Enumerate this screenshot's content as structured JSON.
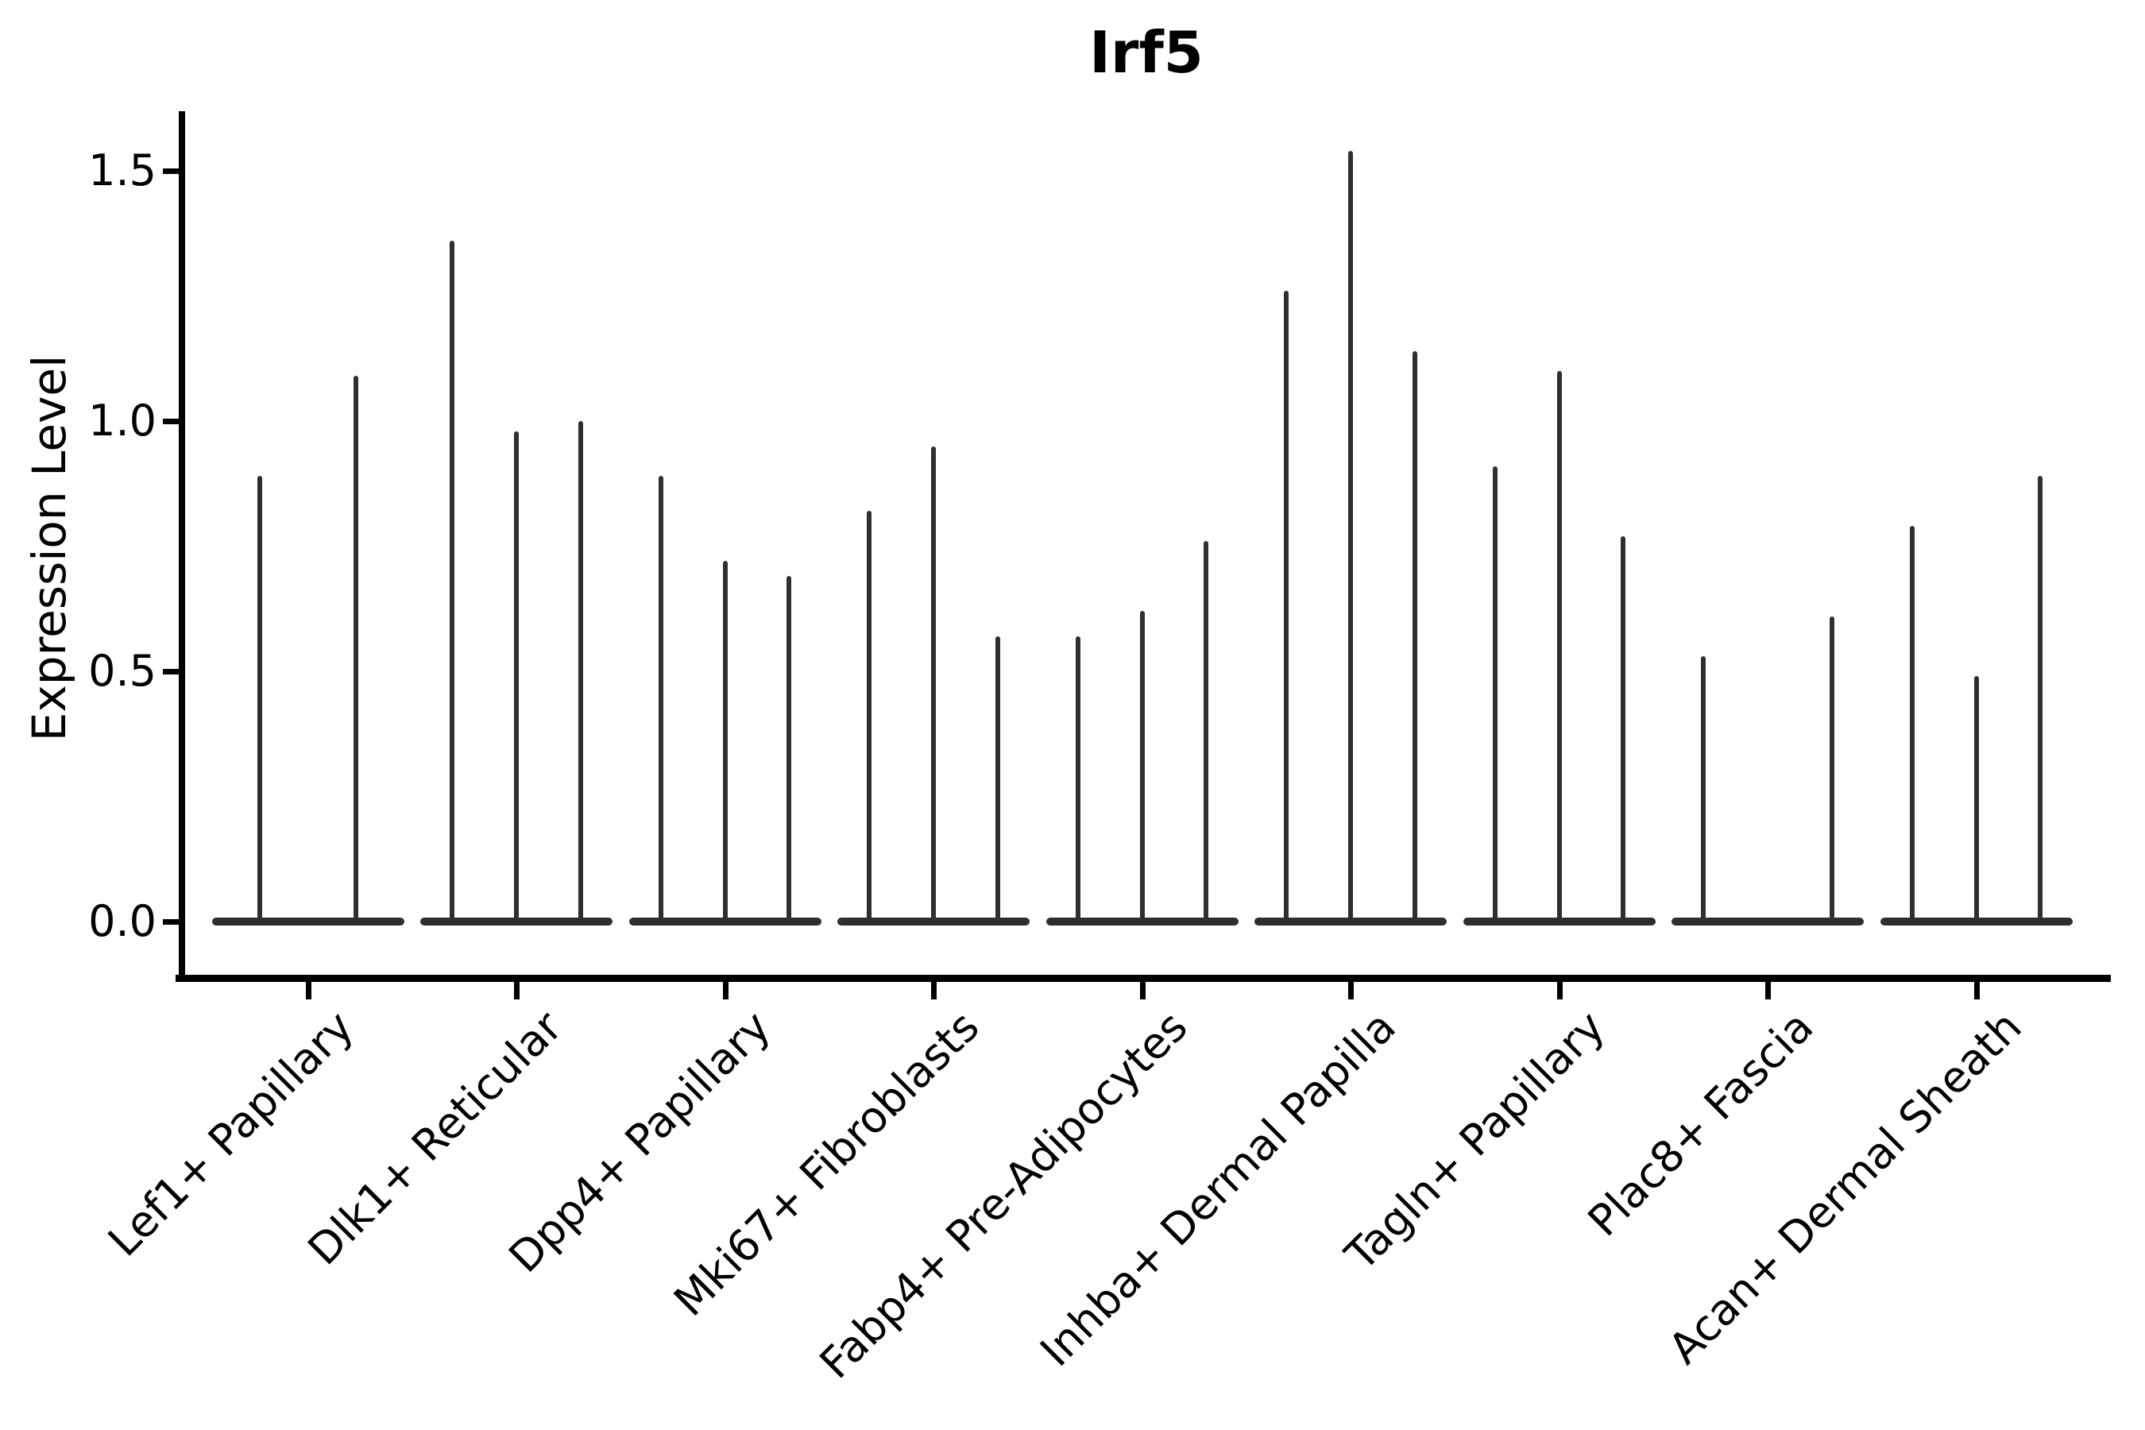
{
  "chart_data": {
    "type": "violin",
    "title": "Irf5",
    "xlabel": "",
    "ylabel": "Expression Level",
    "ytick_labels": [
      "0.0",
      "0.5",
      "1.0",
      "1.5"
    ],
    "yticks": [
      0.0,
      0.5,
      1.0,
      1.5
    ],
    "ylim": [
      -0.11,
      1.62
    ],
    "grid": false,
    "legend_position": "none",
    "categories": [
      "Lef1+ Papillary",
      "Dlk1+ Reticular",
      "Dpp4+ Papillary",
      "Mki67+ Fibroblasts",
      "Fabp4+ Pre-Adipocytes",
      "Inhba+ Dermal Papilla",
      "Tagln+ Papillary",
      "Plac8+ Fascia",
      "Acan+ Dermal Sheath"
    ],
    "series": [
      {
        "category": "Lef1+ Papillary",
        "violin_peaks": [
          0.89,
          1.09
        ]
      },
      {
        "category": "Dlk1+ Reticular",
        "violin_peaks": [
          1.36,
          0.98,
          1.0
        ]
      },
      {
        "category": "Dpp4+ Papillary",
        "violin_peaks": [
          0.89,
          0.72,
          0.69
        ]
      },
      {
        "category": "Mki67+ Fibroblasts",
        "violin_peaks": [
          0.82,
          0.95,
          0.57
        ]
      },
      {
        "category": "Fabp4+ Pre-Adipocytes",
        "violin_peaks": [
          0.57,
          0.62,
          0.76
        ]
      },
      {
        "category": "Inhba+ Dermal Papilla",
        "violin_peaks": [
          1.26,
          1.54,
          1.14
        ]
      },
      {
        "category": "Tagln+ Papillary",
        "violin_peaks": [
          0.91,
          1.1,
          0.77
        ]
      },
      {
        "category": "Plac8+ Fascia",
        "violin_peaks": [
          0.53,
          0,
          0.61
        ]
      },
      {
        "category": "Acan+ Dermal Sheath",
        "violin_peaks": [
          0.79,
          0.49,
          0.89
        ]
      }
    ]
  },
  "colors": {
    "violin": "#2f2f2f",
    "axis": "#000000",
    "background": "#ffffff"
  }
}
